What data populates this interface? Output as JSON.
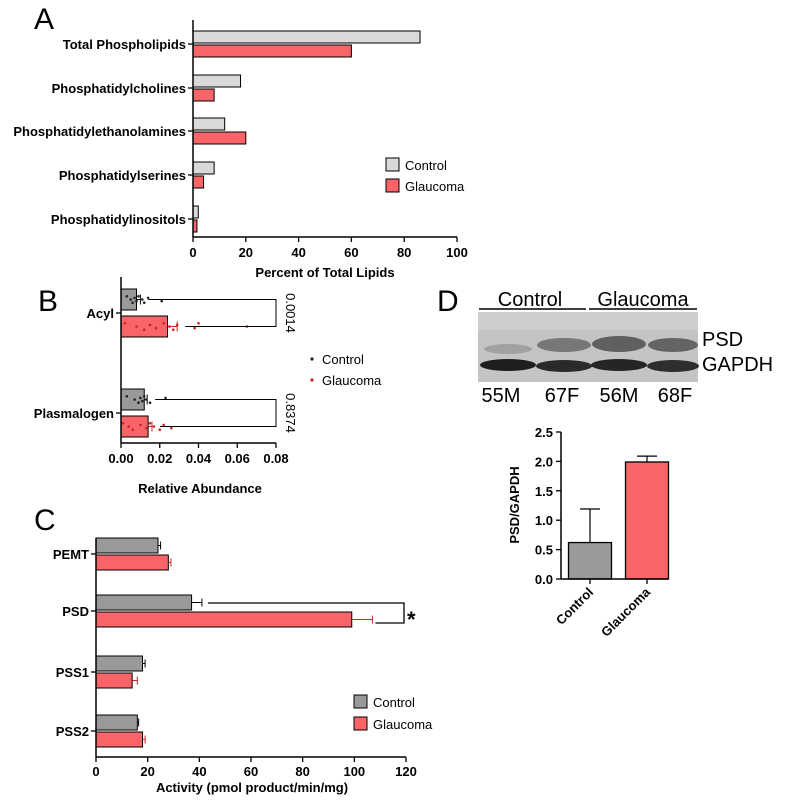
{
  "colors": {
    "control_A": "#d9d9d9",
    "control_C": "#999999",
    "glaucoma": "#f86468",
    "control_dot": "#222222",
    "glaucoma_dot": "#cc2222",
    "axis": "#000000"
  },
  "chart_data": [
    {
      "panel": "A",
      "type": "bar",
      "orientation": "horizontal",
      "categories": [
        "Total Phospholipids",
        "Phosphatidylcholines",
        "Phosphatidylethanolamines",
        "Phosphatidylserines",
        "Phosphatidylinositols"
      ],
      "series": [
        {
          "name": "Control",
          "values": [
            86,
            18,
            12,
            8,
            2
          ]
        },
        {
          "name": "Glaucoma",
          "values": [
            60,
            8,
            20,
            4,
            1.5
          ]
        }
      ],
      "xlabel": "Percent of  Total  Lipids",
      "xlim": [
        0,
        100
      ],
      "xticks": [
        "0",
        "20",
        "40",
        "60",
        "80",
        "100"
      ],
      "legend": [
        "Control",
        "Glaucoma"
      ],
      "legend_position": "right"
    },
    {
      "panel": "B",
      "type": "bar",
      "orientation": "horizontal",
      "categories": [
        "Acyl",
        "Plasmalogen"
      ],
      "series": [
        {
          "name": "Control",
          "values": [
            0.008,
            0.012
          ],
          "error": [
            0.002,
            0.0015
          ]
        },
        {
          "name": "Glaucoma",
          "values": [
            0.024,
            0.014
          ],
          "error": [
            0.005,
            0.002
          ]
        }
      ],
      "points": {
        "Acyl_Control": [
          0.003,
          0.005,
          0.006,
          0.007,
          0.008,
          0.009,
          0.011,
          0.012,
          0.014,
          0.021
        ],
        "Acyl_Glaucoma": [
          0.002,
          0.008,
          0.012,
          0.015,
          0.018,
          0.022,
          0.025,
          0.027,
          0.029,
          0.038,
          0.04,
          0.065
        ],
        "Plasmalogen_Control": [
          0.003,
          0.007,
          0.009,
          0.01,
          0.011,
          0.012,
          0.013,
          0.015,
          0.023
        ],
        "Plasmalogen_Glaucoma": [
          0.001,
          0.004,
          0.006,
          0.01,
          0.013,
          0.015,
          0.017,
          0.02,
          0.022,
          0.026
        ]
      },
      "pvalues": [
        "0.0014",
        "0.8374"
      ],
      "xlabel": "Relative Abundance",
      "xlim": [
        0,
        0.08
      ],
      "xticks": [
        "0.00",
        "0.02",
        "0.04",
        "0.06",
        "0.08"
      ],
      "legend": [
        "Control",
        "Glaucoma"
      ],
      "legend_position": "right"
    },
    {
      "panel": "C",
      "type": "bar",
      "orientation": "horizontal",
      "categories": [
        "PEMT",
        "PSD",
        "PSS1",
        "PSS2"
      ],
      "series": [
        {
          "name": "Control",
          "values": [
            24,
            37,
            18,
            16
          ],
          "error": [
            1,
            4,
            1,
            0.5
          ]
        },
        {
          "name": "Glaucoma",
          "values": [
            28,
            99,
            14,
            18
          ],
          "error": [
            1,
            8,
            2,
            1
          ]
        }
      ],
      "significance": "*",
      "xlabel": "Activity (pmol product/min/mg)",
      "xlim": [
        0,
        120
      ],
      "xticks": [
        "0",
        "20",
        "40",
        "60",
        "80",
        "100",
        "120"
      ],
      "legend": [
        "Control",
        "Glaucoma"
      ],
      "legend_position": "bottom-right"
    },
    {
      "panel": "D",
      "type": "bar",
      "orientation": "vertical",
      "categories": [
        "Control",
        "Glaucoma"
      ],
      "values": [
        0.62,
        1.99
      ],
      "error": [
        0.57,
        0.1
      ],
      "ylabel": "PSD/GAPDH",
      "ylim": [
        0,
        2.5
      ],
      "yticks": [
        "0.0",
        "0.5",
        "1.0",
        "1.5",
        "2.0",
        "2.5"
      ]
    }
  ],
  "panels": {
    "A": "A",
    "B": "B",
    "C": "C",
    "D": "D"
  },
  "blot": {
    "groups": [
      "Control",
      "Glaucoma"
    ],
    "bands": [
      "PSD",
      "GAPDH"
    ],
    "samples": [
      "55M",
      "67F",
      "56M",
      "68F"
    ]
  }
}
